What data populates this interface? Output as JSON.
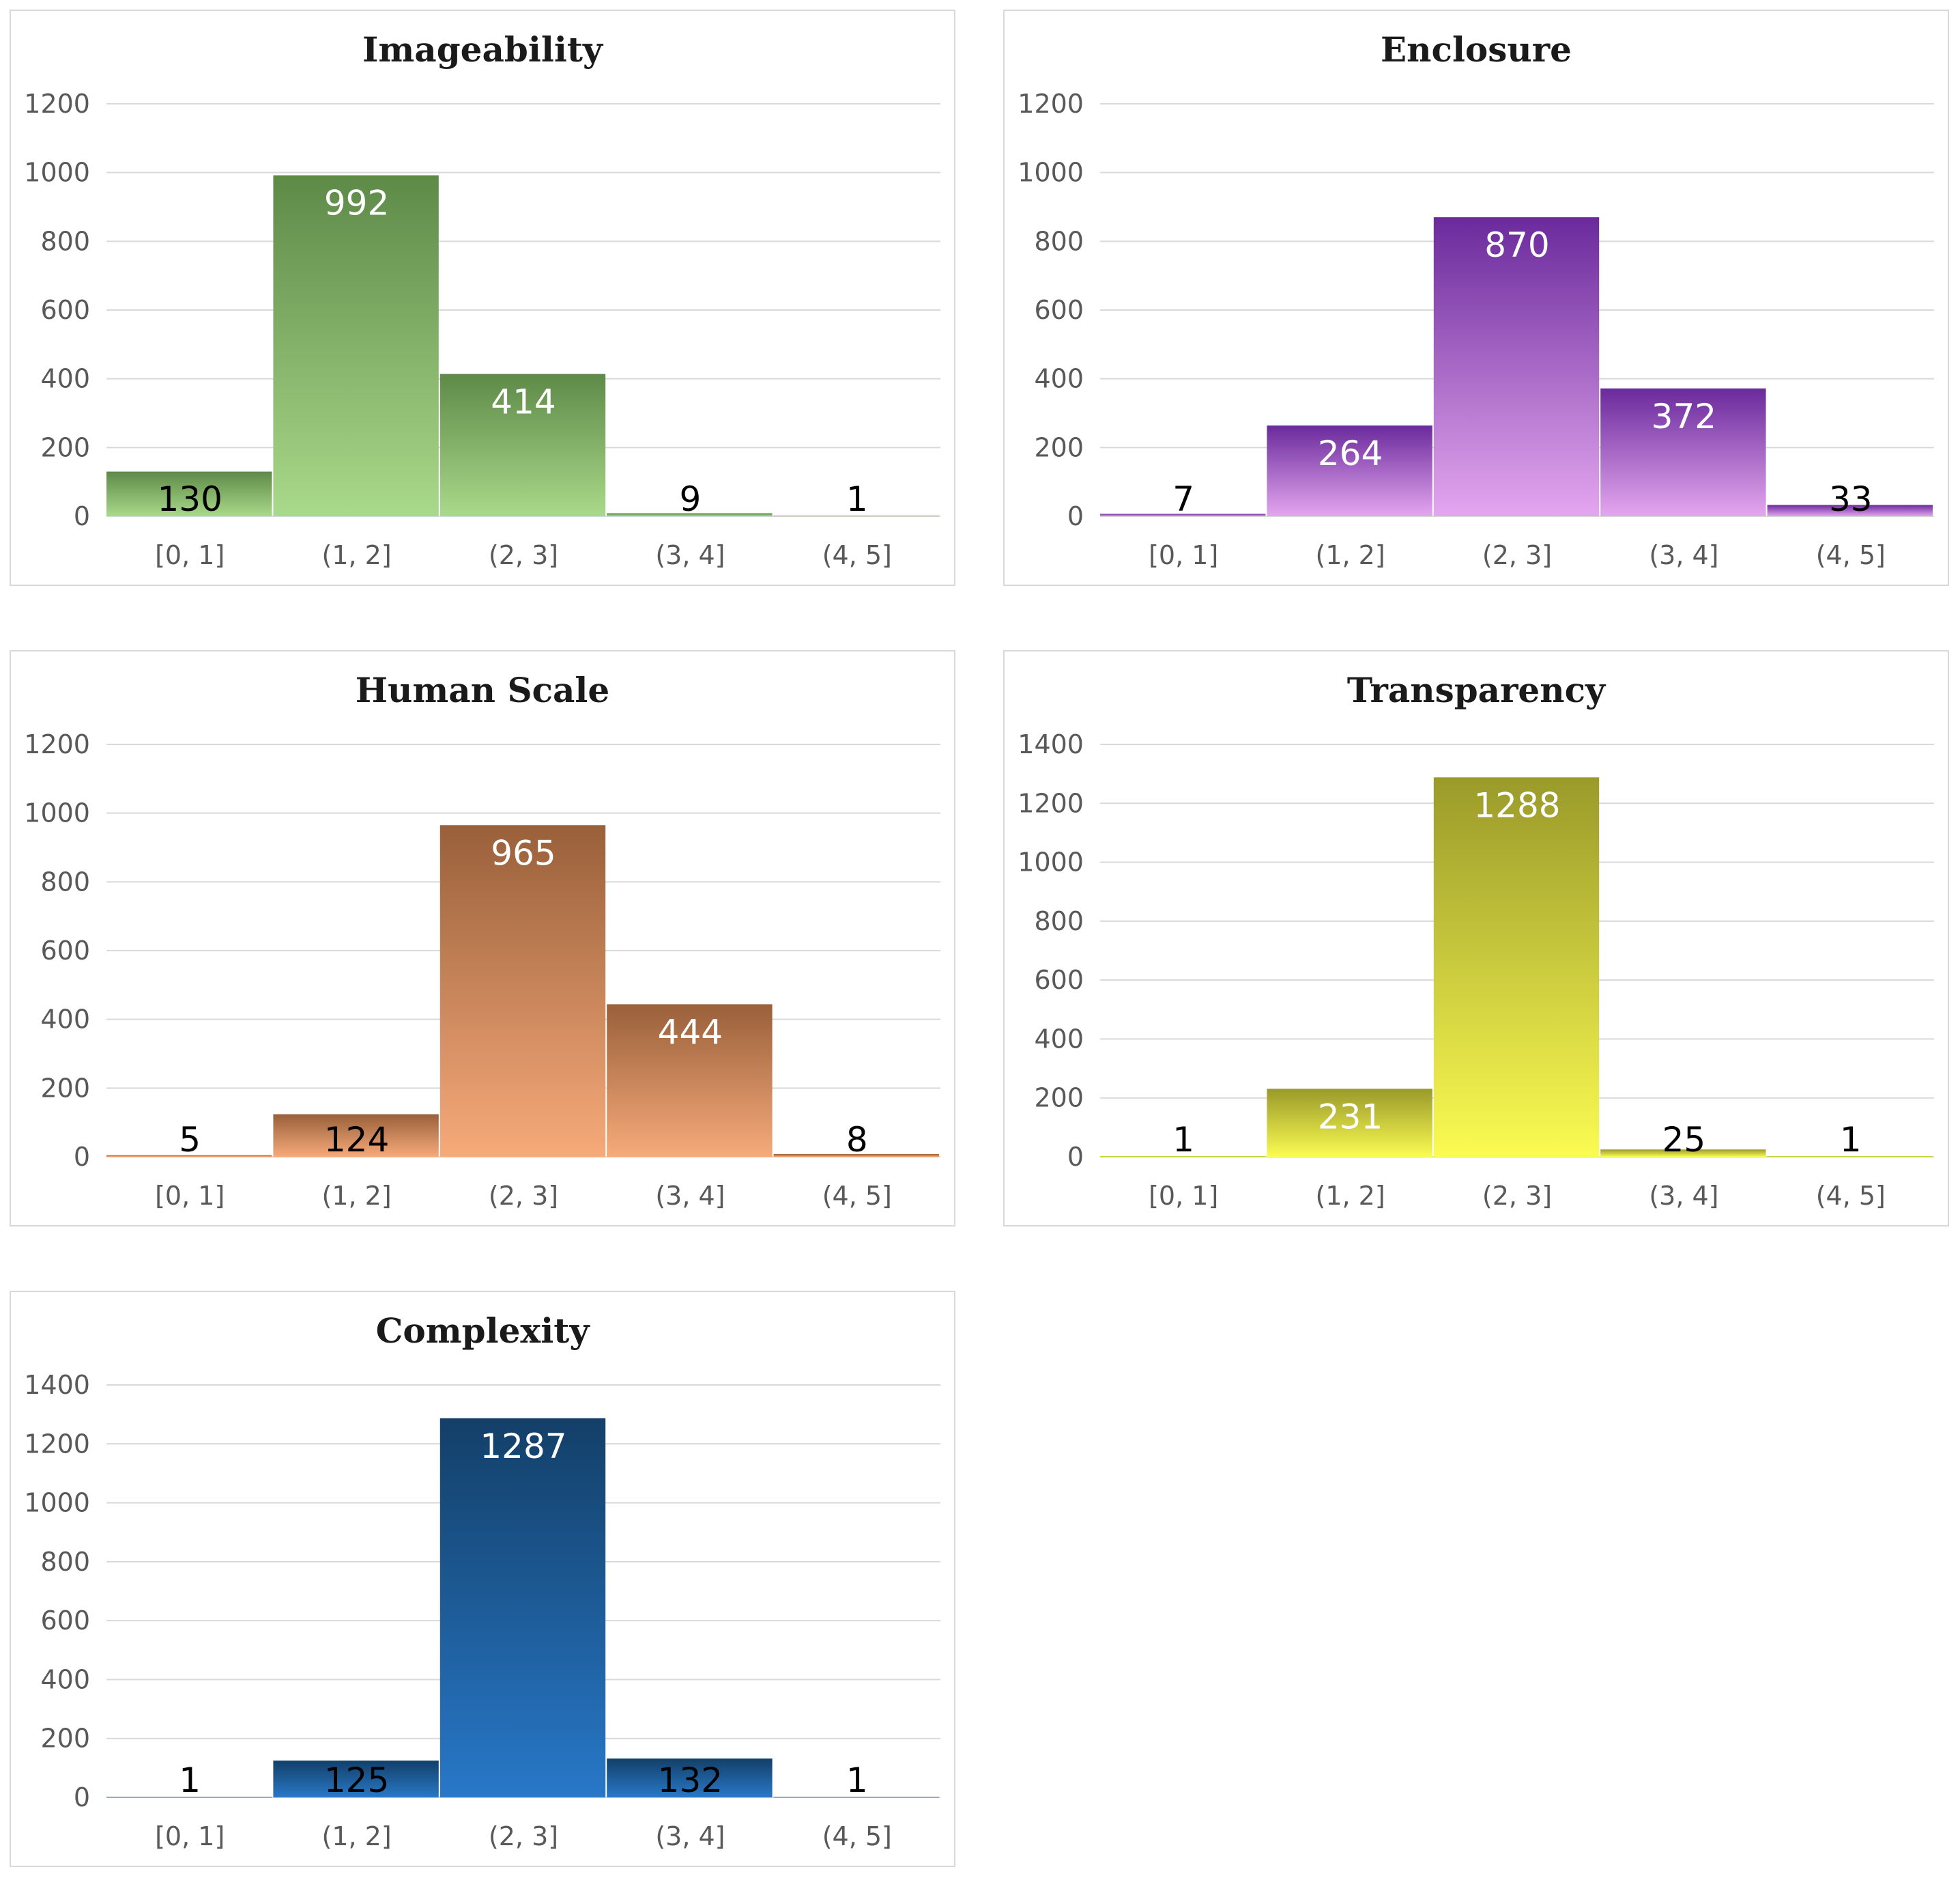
{
  "chart_data": [
    {
      "type": "bar",
      "title": "Imageability",
      "categories": [
        "[0, 1]",
        "(1, 2]",
        "(2, 3]",
        "(3, 4]",
        "(4, 5]"
      ],
      "values": [
        130,
        992,
        414,
        9,
        1
      ],
      "ylim": [
        0,
        1200
      ],
      "yticks": [
        0,
        200,
        400,
        600,
        800,
        1000,
        1200
      ],
      "grid": true,
      "colors": {
        "top": "#5e8a48",
        "bottom": "#a9d98a"
      }
    },
    {
      "type": "bar",
      "title": "Enclosure",
      "categories": [
        "[0, 1]",
        "(1, 2]",
        "(2, 3]",
        "(3, 4]",
        "(4, 5]"
      ],
      "values": [
        7,
        264,
        870,
        372,
        33
      ],
      "ylim": [
        0,
        1200
      ],
      "yticks": [
        0,
        200,
        400,
        600,
        800,
        1000,
        1200
      ],
      "grid": true,
      "colors": {
        "top": "#6a2a9c",
        "bottom": "#e4a6ef"
      }
    },
    {
      "type": "bar",
      "title": "Human Scale",
      "categories": [
        "[0, 1]",
        "(1, 2]",
        "(2, 3]",
        "(3, 4]",
        "(4, 5]"
      ],
      "values": [
        5,
        124,
        965,
        444,
        8
      ],
      "ylim": [
        0,
        1200
      ],
      "yticks": [
        0,
        200,
        400,
        600,
        800,
        1000,
        1200
      ],
      "grid": true,
      "colors": {
        "top": "#99603a",
        "bottom": "#f7aa7a"
      }
    },
    {
      "type": "bar",
      "title": "Transparency",
      "categories": [
        "[0, 1]",
        "(1, 2]",
        "(2, 3]",
        "(3, 4]",
        "(4, 5]"
      ],
      "values": [
        1,
        231,
        1288,
        25,
        1
      ],
      "ylim": [
        0,
        1400
      ],
      "yticks": [
        0,
        200,
        400,
        600,
        800,
        1000,
        1200,
        1400
      ],
      "grid": true,
      "colors": {
        "top": "#9a9a2a",
        "bottom": "#fbfb52"
      }
    },
    {
      "type": "bar",
      "title": "Complexity",
      "categories": [
        "[0, 1]",
        "(1, 2]",
        "(2, 3]",
        "(3, 4]",
        "(4, 5]"
      ],
      "values": [
        1,
        125,
        1287,
        132,
        1
      ],
      "ylim": [
        0,
        1400
      ],
      "yticks": [
        0,
        200,
        400,
        600,
        800,
        1000,
        1200,
        1400
      ],
      "grid": true,
      "colors": {
        "top": "#133f68",
        "bottom": "#2878c8"
      }
    }
  ]
}
